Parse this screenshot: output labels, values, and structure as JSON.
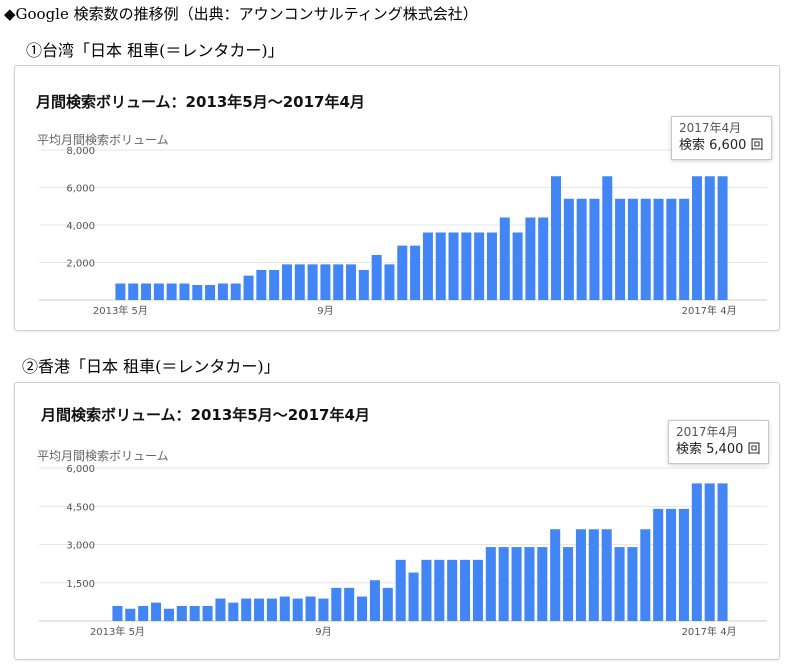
{
  "heading": "◆Google 検索数の推移例（出典：アウンコンサルティング株式会社）",
  "charts": [
    {
      "subtitle": "①台湾「日本 租車(＝レンタカー)」",
      "title": "月間検索ボリューム：2013年5月～2017年4月",
      "ylabel": "平均月間検索ボリューム",
      "tooltip": {
        "date": "2017年4月",
        "label": "検索",
        "value": "6,600",
        "unit": "回"
      }
    },
    {
      "subtitle": "②香港「日本 租車(＝レンタカー)」",
      "title": "月間検索ボリューム：2013年5月～2017年4月",
      "ylabel": "平均月間検索ボリューム",
      "tooltip": {
        "date": "2017年4月",
        "label": "検索",
        "value": "5,400",
        "unit": "回"
      }
    }
  ],
  "chart_data": [
    {
      "type": "bar",
      "title": "月間検索ボリューム：2013年5月～2017年4月",
      "ylabel": "平均月間検索ボリューム",
      "color": "#4285f4",
      "ylim": [
        0,
        8000
      ],
      "yticks": [
        2000,
        4000,
        6000,
        8000
      ],
      "ytick_labels": [
        "2,000",
        "4,000",
        "6,000",
        "8,000"
      ],
      "xtick_labels": [
        {
          "index": 0,
          "text": "2013年 5月"
        },
        {
          "index": 16,
          "text": "9月"
        },
        {
          "index": 47,
          "text": "2017年 4月"
        }
      ],
      "values": [
        880,
        880,
        880,
        880,
        880,
        880,
        800,
        800,
        880,
        880,
        1300,
        1600,
        1600,
        1900,
        1900,
        1900,
        1900,
        1900,
        1900,
        1600,
        2400,
        1900,
        2900,
        2900,
        3600,
        3600,
        3600,
        3600,
        3600,
        3600,
        4400,
        3600,
        4400,
        4400,
        6600,
        5400,
        5400,
        5400,
        6600,
        5400,
        5400,
        5400,
        5400,
        5400,
        5400,
        6600,
        6600,
        6600
      ]
    },
    {
      "type": "bar",
      "title": "月間検索ボリューム：2013年5月～2017年4月",
      "ylabel": "平均月間検索ボリューム",
      "color": "#4285f4",
      "ylim": [
        0,
        6200
      ],
      "yticks": [
        1500,
        3000,
        4500,
        6000
      ],
      "ytick_labels": [
        "1,500",
        "3,000",
        "4,500",
        "6,000"
      ],
      "xtick_labels": [
        {
          "index": 0,
          "text": "2013年 5月"
        },
        {
          "index": 16,
          "text": "9月"
        },
        {
          "index": 47,
          "text": "2017年 4月"
        }
      ],
      "values": [
        590,
        480,
        590,
        720,
        480,
        590,
        590,
        590,
        880,
        720,
        880,
        880,
        880,
        960,
        880,
        960,
        880,
        1300,
        1300,
        960,
        1600,
        1300,
        2400,
        1900,
        2400,
        2400,
        2400,
        2400,
        2400,
        2900,
        2900,
        2900,
        2900,
        2900,
        3600,
        2900,
        3600,
        3600,
        3600,
        2900,
        2900,
        3600,
        4400,
        4400,
        4400,
        5400,
        5400,
        5400
      ]
    }
  ]
}
